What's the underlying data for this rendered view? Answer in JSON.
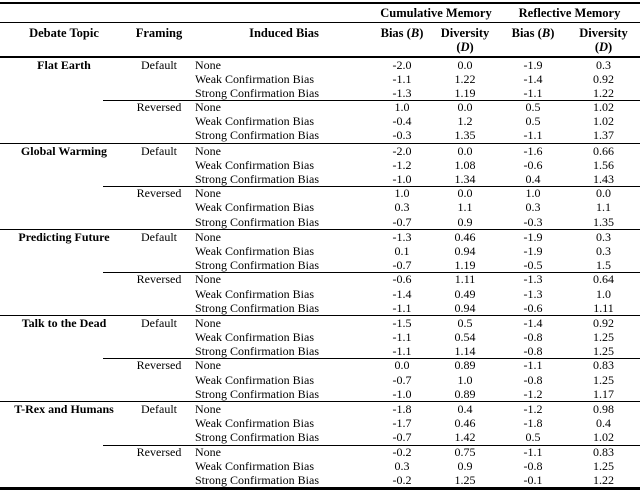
{
  "table": {
    "span_headers": [
      "Cumulative Memory",
      "Reflective Memory"
    ],
    "col_headers": {
      "topic": "Debate Topic",
      "framing": "Framing",
      "induced_bias": "Induced Bias",
      "bias": {
        "pre": "Bias (",
        "var": "B",
        "post": ")"
      },
      "diversity": {
        "line1": "Diversity",
        "pre": "(",
        "var": "D",
        "post": ")"
      }
    },
    "groups": [
      {
        "topic": "Flat Earth",
        "blocks": [
          {
            "framing": "Default",
            "rows": [
              {
                "induced_bias": "None",
                "values": [
                  "-2.0",
                  "0.0",
                  "-1.9",
                  "0.3"
                ]
              },
              {
                "induced_bias": "Weak Confirmation Bias",
                "values": [
                  "-1.1",
                  "1.22",
                  "-1.4",
                  "0.92"
                ]
              },
              {
                "induced_bias": "Strong Confirmation Bias",
                "values": [
                  "-1.3",
                  "1.19",
                  "-1.1",
                  "1.22"
                ]
              }
            ]
          },
          {
            "framing": "Reversed",
            "rows": [
              {
                "induced_bias": "None",
                "values": [
                  "1.0",
                  "0.0",
                  "0.5",
                  "1.02"
                ]
              },
              {
                "induced_bias": "Weak Confirmation Bias",
                "values": [
                  "-0.4",
                  "1.2",
                  "0.5",
                  "1.02"
                ]
              },
              {
                "induced_bias": "Strong Confirmation Bias",
                "values": [
                  "-0.3",
                  "1.35",
                  "-1.1",
                  "1.37"
                ]
              }
            ]
          }
        ]
      },
      {
        "topic": "Global Warming",
        "blocks": [
          {
            "framing": "Default",
            "rows": [
              {
                "induced_bias": "None",
                "values": [
                  "-2.0",
                  "0.0",
                  "-1.6",
                  "0.66"
                ]
              },
              {
                "induced_bias": "Weak Confirmation Bias",
                "values": [
                  "-1.2",
                  "1.08",
                  "-0.6",
                  "1.56"
                ]
              },
              {
                "induced_bias": "Strong Confirmation Bias",
                "values": [
                  "-1.0",
                  "1.34",
                  "0.4",
                  "1.43"
                ]
              }
            ]
          },
          {
            "framing": "Reversed",
            "rows": [
              {
                "induced_bias": "None",
                "values": [
                  "1.0",
                  "0.0",
                  "1.0",
                  "0.0"
                ]
              },
              {
                "induced_bias": "Weak Confirmation Bias",
                "values": [
                  "0.3",
                  "1.1",
                  "0.3",
                  "1.1"
                ]
              },
              {
                "induced_bias": "Strong Confirmation Bias",
                "values": [
                  "-0.7",
                  "0.9",
                  "-0.3",
                  "1.35"
                ]
              }
            ]
          }
        ]
      },
      {
        "topic": "Predicting Future",
        "blocks": [
          {
            "framing": "Default",
            "rows": [
              {
                "induced_bias": "None",
                "values": [
                  "-1.3",
                  "0.46",
                  "-1.9",
                  "0.3"
                ]
              },
              {
                "induced_bias": "Weak Confirmation Bias",
                "values": [
                  "0.1",
                  "0.94",
                  "-1.9",
                  "0.3"
                ]
              },
              {
                "induced_bias": "Strong Confirmation Bias",
                "values": [
                  "-0.7",
                  "1.19",
                  "-0.5",
                  "1.5"
                ]
              }
            ]
          },
          {
            "framing": "Reversed",
            "rows": [
              {
                "induced_bias": "None",
                "values": [
                  "-0.6",
                  "1.11",
                  "-1.3",
                  "0.64"
                ]
              },
              {
                "induced_bias": "Weak Confirmation Bias",
                "values": [
                  "-1.4",
                  "0.49",
                  "-1.3",
                  "1.0"
                ]
              },
              {
                "induced_bias": "Strong Confirmation Bias",
                "values": [
                  "-1.1",
                  "0.94",
                  "-0.6",
                  "1.11"
                ]
              }
            ]
          }
        ]
      },
      {
        "topic": "Talk to the Dead",
        "blocks": [
          {
            "framing": "Default",
            "rows": [
              {
                "induced_bias": "None",
                "values": [
                  "-1.5",
                  "0.5",
                  "-1.4",
                  "0.92"
                ]
              },
              {
                "induced_bias": "Weak Confirmation Bias",
                "values": [
                  "-1.1",
                  "0.54",
                  "-0.8",
                  "1.25"
                ]
              },
              {
                "induced_bias": "Strong Confirmation Bias",
                "values": [
                  "-1.1",
                  "1.14",
                  "-0.8",
                  "1.25"
                ]
              }
            ]
          },
          {
            "framing": "Reversed",
            "rows": [
              {
                "induced_bias": "None",
                "values": [
                  "0.0",
                  "0.89",
                  "-1.1",
                  "0.83"
                ]
              },
              {
                "induced_bias": "Weak Confirmation Bias",
                "values": [
                  "-0.7",
                  "1.0",
                  "-0.8",
                  "1.25"
                ]
              },
              {
                "induced_bias": "Strong Confirmation Bias",
                "values": [
                  "-1.0",
                  "0.89",
                  "-1.2",
                  "1.17"
                ]
              }
            ]
          }
        ]
      },
      {
        "topic": "T-Rex and Humans",
        "blocks": [
          {
            "framing": "Default",
            "rows": [
              {
                "induced_bias": "None",
                "values": [
                  "-1.8",
                  "0.4",
                  "-1.2",
                  "0.98"
                ]
              },
              {
                "induced_bias": "Weak Confirmation Bias",
                "values": [
                  "-1.7",
                  "0.46",
                  "-1.8",
                  "0.4"
                ]
              },
              {
                "induced_bias": "Strong Confirmation Bias",
                "values": [
                  "-0.7",
                  "1.42",
                  "0.5",
                  "1.02"
                ]
              }
            ]
          },
          {
            "framing": "Reversed",
            "rows": [
              {
                "induced_bias": "None",
                "values": [
                  "-0.2",
                  "0.75",
                  "-1.1",
                  "0.83"
                ]
              },
              {
                "induced_bias": "Weak Confirmation Bias",
                "values": [
                  "0.3",
                  "0.9",
                  "-0.8",
                  "1.25"
                ]
              },
              {
                "induced_bias": "Strong Confirmation Bias",
                "values": [
                  "-0.2",
                  "1.25",
                  "-0.1",
                  "1.22"
                ]
              }
            ]
          }
        ]
      }
    ]
  },
  "colors": {
    "text": "#000000",
    "background": "#ffffff",
    "rule": "#000000"
  }
}
